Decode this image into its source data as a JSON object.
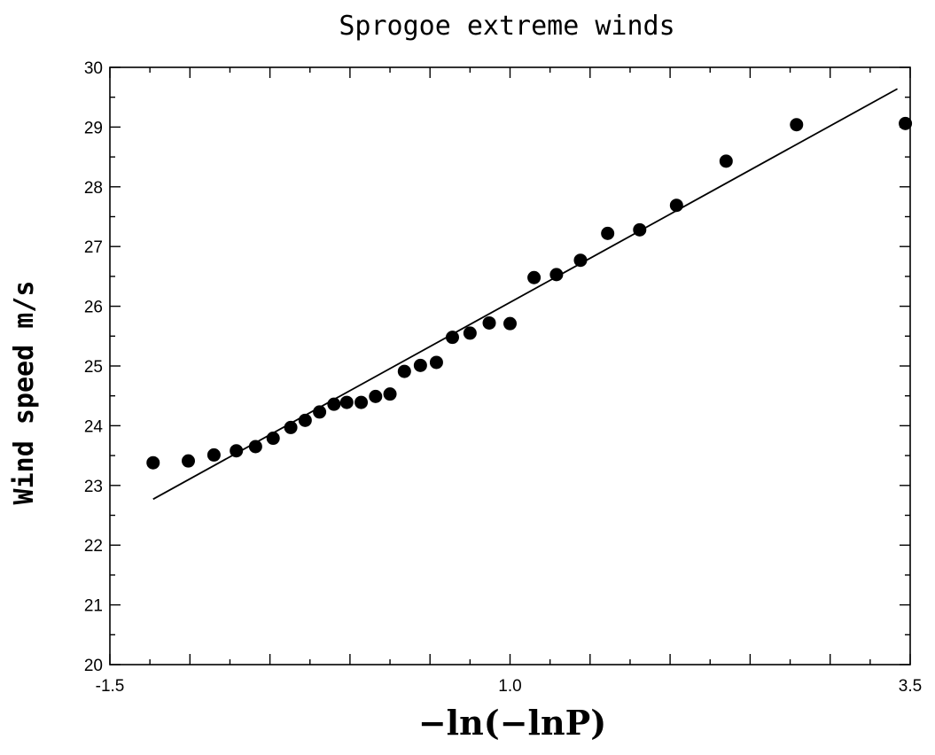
{
  "chart_data": {
    "type": "scatter",
    "title": "Sprogoe extreme winds",
    "xlabel": "−ln(−lnP)",
    "ylabel": "Wind speed m/s",
    "xlim": [
      -1.5,
      3.5
    ],
    "ylim": [
      20,
      30
    ],
    "x_ticks": [
      -1.5,
      -1.0,
      -0.5,
      0.0,
      0.5,
      1.0,
      1.5,
      2.0,
      2.5,
      3.0,
      3.5
    ],
    "x_tick_labels": [
      "-1.5",
      "",
      "",
      "",
      "",
      "1.0",
      "",
      "",
      "",
      "",
      "3.5"
    ],
    "y_ticks": [
      20,
      21,
      22,
      23,
      24,
      25,
      26,
      27,
      28,
      29,
      30
    ],
    "y_tick_labels": [
      "20",
      "21",
      "22",
      "23",
      "24",
      "25",
      "26",
      "27",
      "28",
      "29",
      "30"
    ],
    "grid": false,
    "points": [
      {
        "x": -1.23,
        "y": 23.38
      },
      {
        "x": -1.01,
        "y": 23.41
      },
      {
        "x": -0.85,
        "y": 23.51
      },
      {
        "x": -0.71,
        "y": 23.58
      },
      {
        "x": -0.59,
        "y": 23.65
      },
      {
        "x": -0.48,
        "y": 23.79
      },
      {
        "x": -0.37,
        "y": 23.97
      },
      {
        "x": -0.28,
        "y": 24.09
      },
      {
        "x": -0.19,
        "y": 24.23
      },
      {
        "x": -0.1,
        "y": 24.36
      },
      {
        "x": -0.02,
        "y": 24.39
      },
      {
        "x": 0.07,
        "y": 24.39
      },
      {
        "x": 0.16,
        "y": 24.49
      },
      {
        "x": 0.25,
        "y": 24.53
      },
      {
        "x": 0.34,
        "y": 24.91
      },
      {
        "x": 0.44,
        "y": 25.01
      },
      {
        "x": 0.54,
        "y": 25.06
      },
      {
        "x": 0.64,
        "y": 25.48
      },
      {
        "x": 0.75,
        "y": 25.55
      },
      {
        "x": 0.87,
        "y": 25.72
      },
      {
        "x": 1.0,
        "y": 25.71
      },
      {
        "x": 1.15,
        "y": 26.48
      },
      {
        "x": 1.29,
        "y": 26.53
      },
      {
        "x": 1.44,
        "y": 26.77
      },
      {
        "x": 1.61,
        "y": 27.22
      },
      {
        "x": 1.81,
        "y": 27.28
      },
      {
        "x": 2.04,
        "y": 27.69
      },
      {
        "x": 2.35,
        "y": 28.43
      },
      {
        "x": 2.79,
        "y": 29.04
      },
      {
        "x": 3.47,
        "y": 29.06
      }
    ],
    "fit_line": {
      "x": [
        -1.23,
        3.42
      ],
      "y": [
        22.77,
        29.64
      ]
    }
  }
}
